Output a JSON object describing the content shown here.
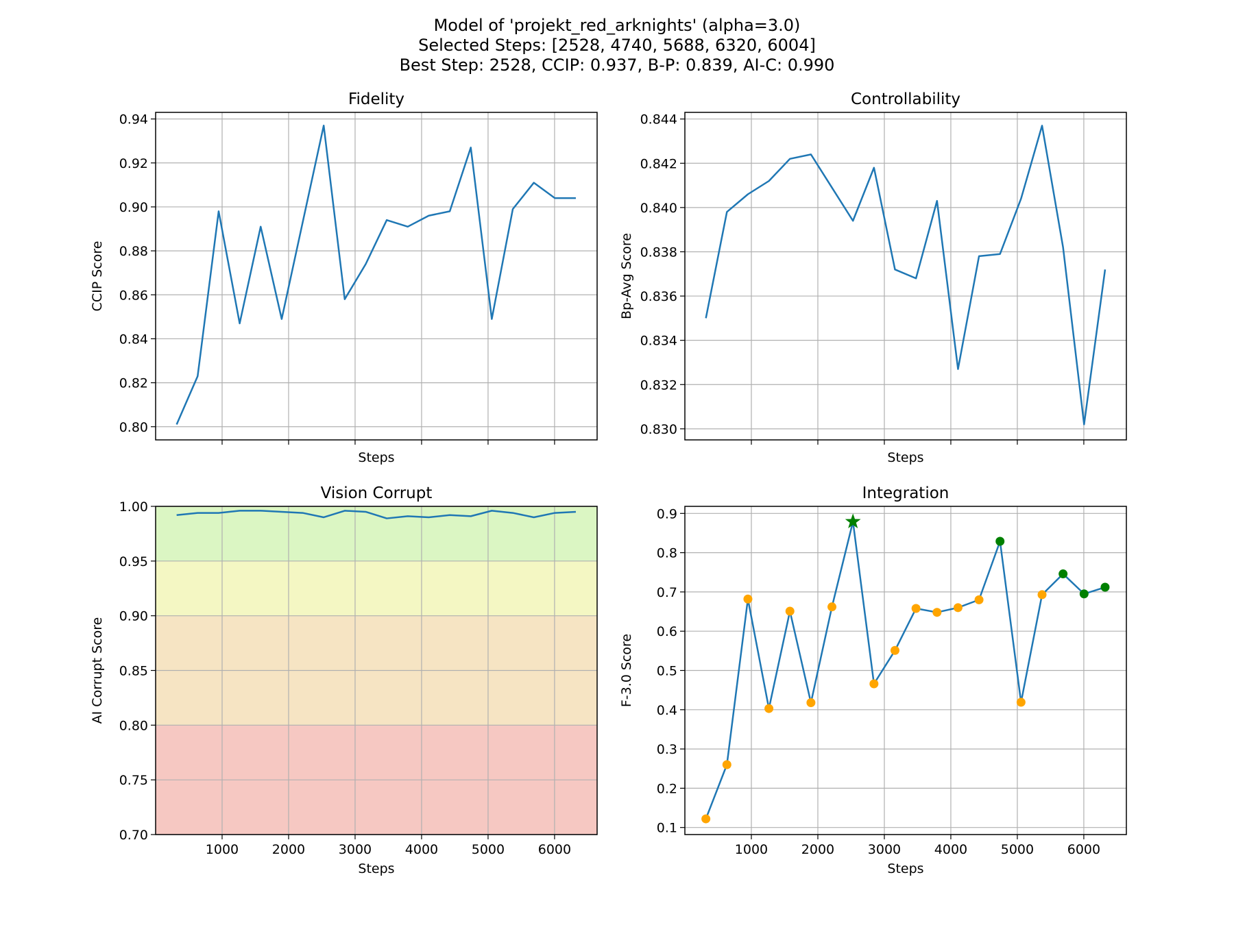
{
  "figure": {
    "title_lines": [
      "Model of 'projekt_red_arknights' (alpha=3.0)",
      "Selected Steps: [2528, 4740, 5688, 6320, 6004]",
      "Best Step: 2528, CCIP: 0.937, B-P: 0.839, AI-C: 0.990"
    ]
  },
  "chart_data": [
    {
      "id": "fidelity",
      "type": "line",
      "title": "Fidelity",
      "xlabel": "Steps",
      "ylabel": "CCIP Score",
      "xlim": [
        0,
        6640
      ],
      "ylim": [
        0.794,
        0.943
      ],
      "xticks": [
        1000,
        2000,
        3000,
        4000,
        5000,
        6000
      ],
      "show_xticklabels": false,
      "yticks": [
        0.8,
        0.82,
        0.84,
        0.86,
        0.88,
        0.9,
        0.92,
        0.94
      ],
      "ytick_labels": [
        "0.80",
        "0.82",
        "0.84",
        "0.86",
        "0.88",
        "0.90",
        "0.92",
        "0.94"
      ],
      "grid": true,
      "line_color": "#1f77b4",
      "x": [
        316,
        632,
        948,
        1264,
        1580,
        1896,
        2212,
        2528,
        2844,
        3160,
        3476,
        3792,
        4108,
        4424,
        4740,
        5056,
        5372,
        5688,
        6004,
        6320
      ],
      "values": [
        0.801,
        0.823,
        0.898,
        0.847,
        0.891,
        0.849,
        0.893,
        0.937,
        0.858,
        0.874,
        0.894,
        0.891,
        0.896,
        0.898,
        0.927,
        0.849,
        0.899,
        0.911,
        0.904,
        0.904
      ]
    },
    {
      "id": "controllability",
      "type": "line",
      "title": "Controllability",
      "xlabel": "Steps",
      "ylabel": "Bp-Avg Score",
      "xlim": [
        0,
        6640
      ],
      "ylim": [
        0.8295,
        0.8443
      ],
      "xticks": [
        1000,
        2000,
        3000,
        4000,
        5000,
        6000
      ],
      "show_xticklabels": false,
      "yticks": [
        0.83,
        0.832,
        0.834,
        0.836,
        0.838,
        0.84,
        0.842,
        0.844
      ],
      "ytick_labels": [
        "0.830",
        "0.832",
        "0.834",
        "0.836",
        "0.838",
        "0.840",
        "0.842",
        "0.844"
      ],
      "grid": true,
      "line_color": "#1f77b4",
      "x": [
        316,
        632,
        948,
        1264,
        1580,
        1896,
        2212,
        2528,
        2844,
        3160,
        3476,
        3792,
        4108,
        4424,
        4740,
        5056,
        5372,
        5688,
        6004,
        6320
      ],
      "values": [
        0.835,
        0.8398,
        0.8406,
        0.8412,
        0.8422,
        0.8424,
        0.8409,
        0.8394,
        0.8418,
        0.8372,
        0.8368,
        0.8403,
        0.8327,
        0.8378,
        0.8379,
        0.8404,
        0.8437,
        0.8382,
        0.8302,
        0.8372
      ]
    },
    {
      "id": "vision-corrupt",
      "type": "line",
      "title": "Vision Corrupt",
      "xlabel": "Steps",
      "ylabel": "AI Corrupt Score",
      "xlim": [
        0,
        6640
      ],
      "ylim": [
        0.7,
        1.0
      ],
      "xticks": [
        1000,
        2000,
        3000,
        4000,
        5000,
        6000
      ],
      "xtick_labels": [
        "1000",
        "2000",
        "3000",
        "4000",
        "5000",
        "6000"
      ],
      "show_xticklabels": true,
      "yticks": [
        0.7,
        0.75,
        0.8,
        0.85,
        0.9,
        0.95,
        1.0
      ],
      "ytick_labels": [
        "0.70",
        "0.75",
        "0.80",
        "0.85",
        "0.90",
        "0.95",
        "1.00"
      ],
      "grid": true,
      "line_color": "#1f77b4",
      "bands": [
        {
          "from": 0.7,
          "to": 0.8,
          "color": "#f6c8c2"
        },
        {
          "from": 0.8,
          "to": 0.9,
          "color": "#f6e4c3"
        },
        {
          "from": 0.9,
          "to": 0.95,
          "color": "#f4f7c3"
        },
        {
          "from": 0.95,
          "to": 1.0,
          "color": "#dbf6c3"
        }
      ],
      "x": [
        316,
        632,
        948,
        1264,
        1580,
        1896,
        2212,
        2528,
        2844,
        3160,
        3476,
        3792,
        4108,
        4424,
        4740,
        5056,
        5372,
        5688,
        6004,
        6320
      ],
      "values": [
        0.992,
        0.994,
        0.994,
        0.996,
        0.996,
        0.995,
        0.994,
        0.99,
        0.996,
        0.995,
        0.989,
        0.991,
        0.99,
        0.992,
        0.991,
        0.996,
        0.994,
        0.99,
        0.994,
        0.995
      ]
    },
    {
      "id": "integration",
      "type": "line",
      "title": "Integration",
      "xlabel": "Steps",
      "ylabel": "F-3.0 Score",
      "xlim": [
        0,
        6640
      ],
      "ylim": [
        0.082,
        0.918
      ],
      "xticks": [
        1000,
        2000,
        3000,
        4000,
        5000,
        6000
      ],
      "xtick_labels": [
        "1000",
        "2000",
        "3000",
        "4000",
        "5000",
        "6000"
      ],
      "show_xticklabels": true,
      "yticks": [
        0.1,
        0.2,
        0.3,
        0.4,
        0.5,
        0.6,
        0.7,
        0.8,
        0.9
      ],
      "ytick_labels": [
        "0.1",
        "0.2",
        "0.3",
        "0.4",
        "0.5",
        "0.6",
        "0.7",
        "0.8",
        "0.9"
      ],
      "grid": true,
      "line_color": "#1f77b4",
      "point_color": "#ffa500",
      "selected_color": "#008000",
      "best_step": 2528,
      "selected_steps": [
        2528,
        4740,
        5688,
        6320,
        6004
      ],
      "x": [
        316,
        632,
        948,
        1264,
        1580,
        1896,
        2212,
        2528,
        2844,
        3160,
        3476,
        3792,
        4108,
        4424,
        4740,
        5056,
        5372,
        5688,
        6004,
        6320
      ],
      "values": [
        0.122,
        0.26,
        0.682,
        0.403,
        0.651,
        0.418,
        0.662,
        0.879,
        0.466,
        0.551,
        0.658,
        0.648,
        0.66,
        0.68,
        0.829,
        0.419,
        0.693,
        0.746,
        0.695,
        0.712
      ]
    }
  ]
}
